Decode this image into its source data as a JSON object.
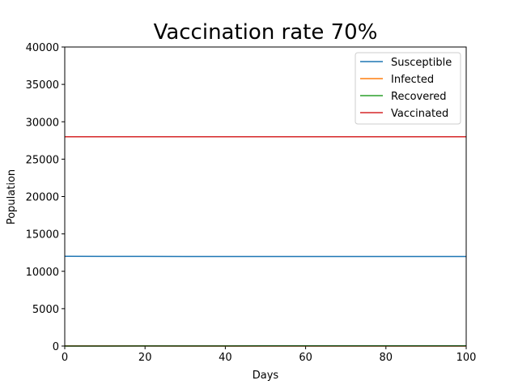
{
  "chart_data": {
    "type": "line",
    "title": "Vaccination rate  70%",
    "xlabel": "Days",
    "ylabel": "Population",
    "xlim": [
      0,
      100
    ],
    "ylim": [
      0,
      40000
    ],
    "xticks": [
      0,
      20,
      40,
      60,
      80,
      100
    ],
    "yticks": [
      0,
      5000,
      10000,
      15000,
      20000,
      25000,
      30000,
      35000,
      40000
    ],
    "grid": false,
    "legend_position": "top-right",
    "x": [
      0,
      10,
      20,
      30,
      40,
      50,
      60,
      70,
      80,
      90,
      100
    ],
    "series": [
      {
        "name": "Susceptible",
        "color": "#1f77b4",
        "values": [
          12000,
          11995,
          11990,
          11985,
          11980,
          11978,
          11976,
          11975,
          11974,
          11973,
          11972
        ]
      },
      {
        "name": "Infected",
        "color": "#ff7f0e",
        "values": [
          10,
          9,
          8,
          7,
          6,
          5,
          4,
          3,
          3,
          2,
          2
        ]
      },
      {
        "name": "Recovered",
        "color": "#2ca02c",
        "values": [
          0,
          5,
          10,
          15,
          20,
          22,
          24,
          25,
          26,
          27,
          28
        ]
      },
      {
        "name": "Vaccinated",
        "color": "#d62728",
        "values": [
          28000,
          28000,
          28000,
          28000,
          28000,
          28000,
          28000,
          28000,
          28000,
          28000,
          28000
        ]
      }
    ]
  }
}
